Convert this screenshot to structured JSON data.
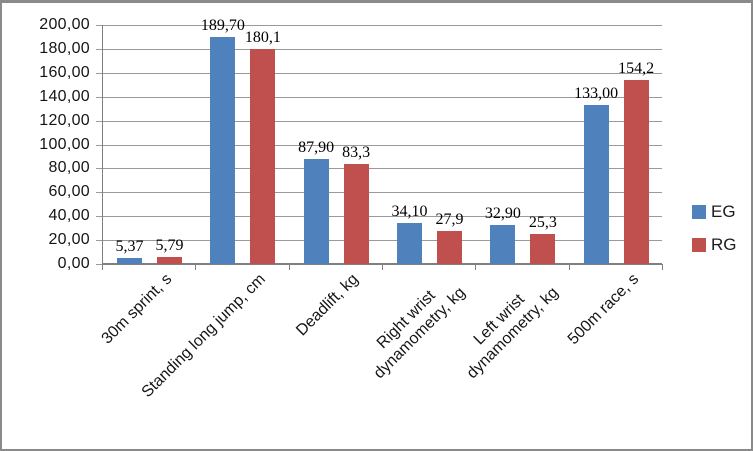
{
  "chart_data": {
    "type": "bar",
    "title": "",
    "categories": [
      {
        "lines": [
          "30m sprint, s"
        ]
      },
      {
        "lines": [
          "Standing long jump, cm"
        ]
      },
      {
        "lines": [
          "Deadlift, kg"
        ]
      },
      {
        "lines": [
          "Right wrist",
          "dynamometry, kg"
        ]
      },
      {
        "lines": [
          "Left wrist",
          "dynamometry, kg"
        ]
      },
      {
        "lines": [
          "500m race, s"
        ]
      }
    ],
    "series": [
      {
        "name": "EG",
        "color": "#4F81BD",
        "values": [
          5.37,
          189.7,
          87.9,
          34.1,
          32.9,
          133.0
        ],
        "value_labels": [
          "5,37",
          "189,70",
          "87,90",
          "34,10",
          "32,90",
          "133,00"
        ]
      },
      {
        "name": "RG",
        "color": "#C0504D",
        "values": [
          5.79,
          180.1,
          83.3,
          27.9,
          25.3,
          154.2
        ],
        "value_labels": [
          "5,79",
          "180,1",
          "83,3",
          "27,9",
          "25,3",
          "154,2"
        ]
      }
    ],
    "ylim": [
      0,
      200
    ],
    "ytick_step": 20,
    "ytick_labels": [
      "0,00",
      "20,00",
      "40,00",
      "60,00",
      "80,00",
      "100,00",
      "120,00",
      "140,00",
      "160,00",
      "180,00",
      "200,00"
    ],
    "grid": true,
    "legend_position": "right-middle",
    "decimal_separator": ","
  },
  "legend": {
    "items": [
      {
        "label": "EG",
        "color": "#4F81BD"
      },
      {
        "label": "RG",
        "color": "#C0504D"
      }
    ]
  },
  "colors": {
    "series_eg": "#4F81BD",
    "series_rg": "#C0504D",
    "gridline": "#9a9a9a",
    "axis": "#808080",
    "frame_border": "#8a8a8a"
  }
}
